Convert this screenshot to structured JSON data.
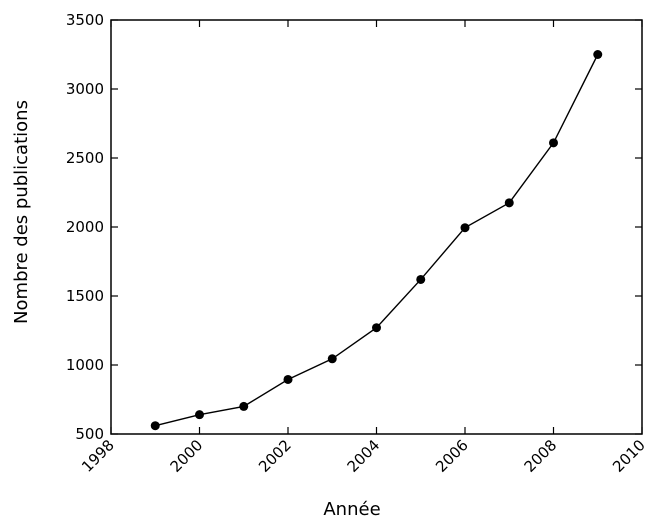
{
  "chart_data": {
    "type": "line",
    "title": "",
    "xlabel": "Année",
    "ylabel": "Nombre des publications",
    "xlim": [
      1998,
      2010
    ],
    "ylim": [
      500,
      3500
    ],
    "xticks": [
      "1998",
      "2000",
      "2002",
      "2004",
      "2006",
      "2008",
      "2010"
    ],
    "yticks": [
      "500",
      "1000",
      "1500",
      "2000",
      "2500",
      "3000",
      "3500"
    ],
    "grid": false,
    "legend": "none",
    "series": [
      {
        "color": "#000000",
        "marker": "circle",
        "x": [
          1999,
          2000,
          2001,
          2002,
          2003,
          2004,
          2005,
          2006,
          2007,
          2008,
          2009
        ],
        "y": [
          560,
          640,
          700,
          895,
          1045,
          1270,
          1620,
          1995,
          2175,
          2610,
          3250
        ]
      }
    ]
  }
}
